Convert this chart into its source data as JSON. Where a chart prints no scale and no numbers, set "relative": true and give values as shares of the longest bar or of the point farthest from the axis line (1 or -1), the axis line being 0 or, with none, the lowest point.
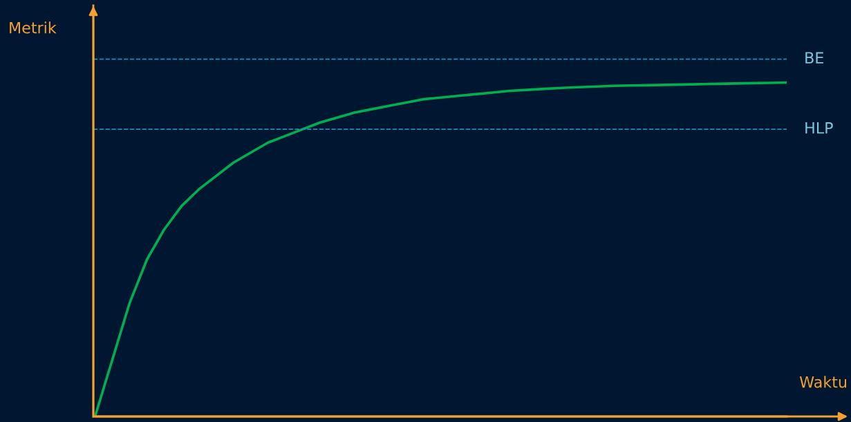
{
  "chart_data": {
    "type": "line",
    "relative": true,
    "xlabel": "Waktu",
    "ylabel": "Metrik",
    "categories": [
      null,
      null,
      null,
      null,
      null,
      null,
      null,
      null,
      null,
      null,
      null,
      null,
      null,
      null,
      null,
      null,
      null,
      null,
      null,
      null,
      null,
      null,
      null,
      null,
      null,
      null,
      null,
      null,
      null,
      null,
      null,
      null,
      null,
      null,
      null,
      null,
      null,
      null,
      null,
      null,
      null
    ],
    "series": [
      {
        "color": "#00b050",
        "values": [
          0,
          0.17,
          0.34,
          0.47,
          0.56,
          0.63,
          0.68,
          0.72,
          0.76,
          0.79,
          0.82,
          0.84,
          0.86,
          0.88,
          0.895,
          0.91,
          0.92,
          0.93,
          0.94,
          0.95,
          0.955,
          0.96,
          0.965,
          0.97,
          0.975,
          0.978,
          0.981,
          0.984,
          0.986,
          0.988,
          0.99,
          0.991,
          0.992,
          0.993,
          0.994,
          0.995,
          0.996,
          0.997,
          0.998,
          0.999,
          1
        ]
      }
    ],
    "ref_lines": [
      {
        "axis": "y",
        "value": 1.07,
        "label": "BE",
        "color": "#1f8fb3",
        "line_style": "dashed"
      },
      {
        "axis": "y",
        "value": 0.86,
        "label": "HLP",
        "color": "#1f8fb3",
        "line_style": "dashed"
      }
    ],
    "grid": false,
    "marker": "none",
    "line_style": "solid"
  }
}
